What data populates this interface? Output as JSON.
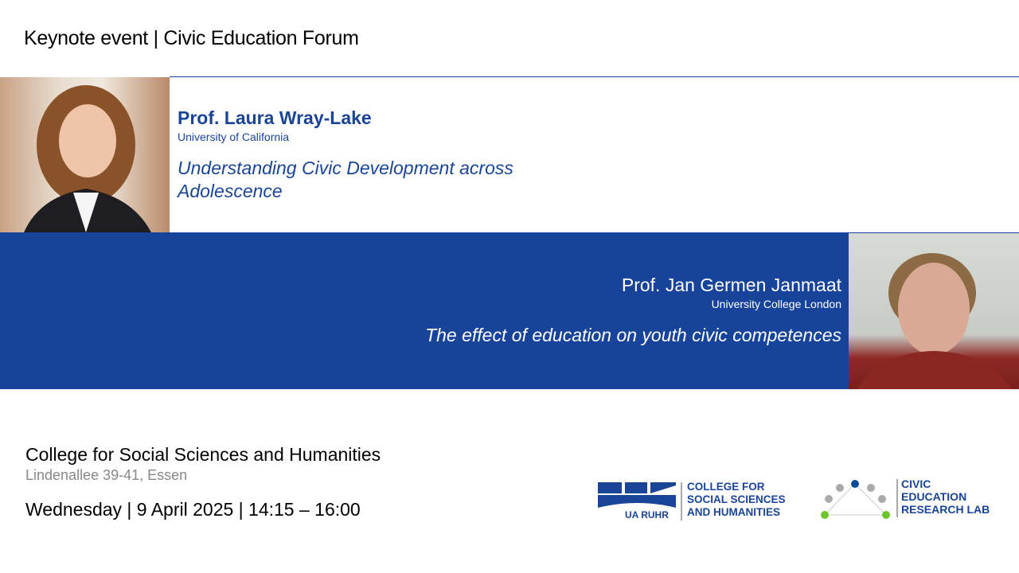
{
  "title": "Keynote event | Civic Education Forum",
  "speakers": [
    {
      "name": "Prof. Laura Wray-Lake",
      "affiliation": "University of California",
      "talk": "Understanding Civic Development across Adolescence"
    },
    {
      "name": "Prof. Jan Germen Janmaat",
      "affiliation": "University College London",
      "talk": "The effect of education on youth civic competences"
    }
  ],
  "venue": {
    "name": "College for Social Sciences and Humanities",
    "address": "Lindenallee 39-41, Essen",
    "datetime": "Wednesday | 9 April 2025 | 14:15 – 16:00"
  },
  "logos": {
    "college": {
      "mark": "UA RUHR",
      "lines": [
        "COLLEGE FOR",
        "SOCIAL SCIENCES",
        "AND HUMANITIES"
      ]
    },
    "lab": {
      "lines": [
        "CIVIC",
        "EDUCATION",
        "RESEARCH LAB"
      ]
    }
  },
  "colors": {
    "brand_blue": "#17439a",
    "lab_green": "#6cc52c",
    "lab_gray": "#aaaaaa"
  }
}
